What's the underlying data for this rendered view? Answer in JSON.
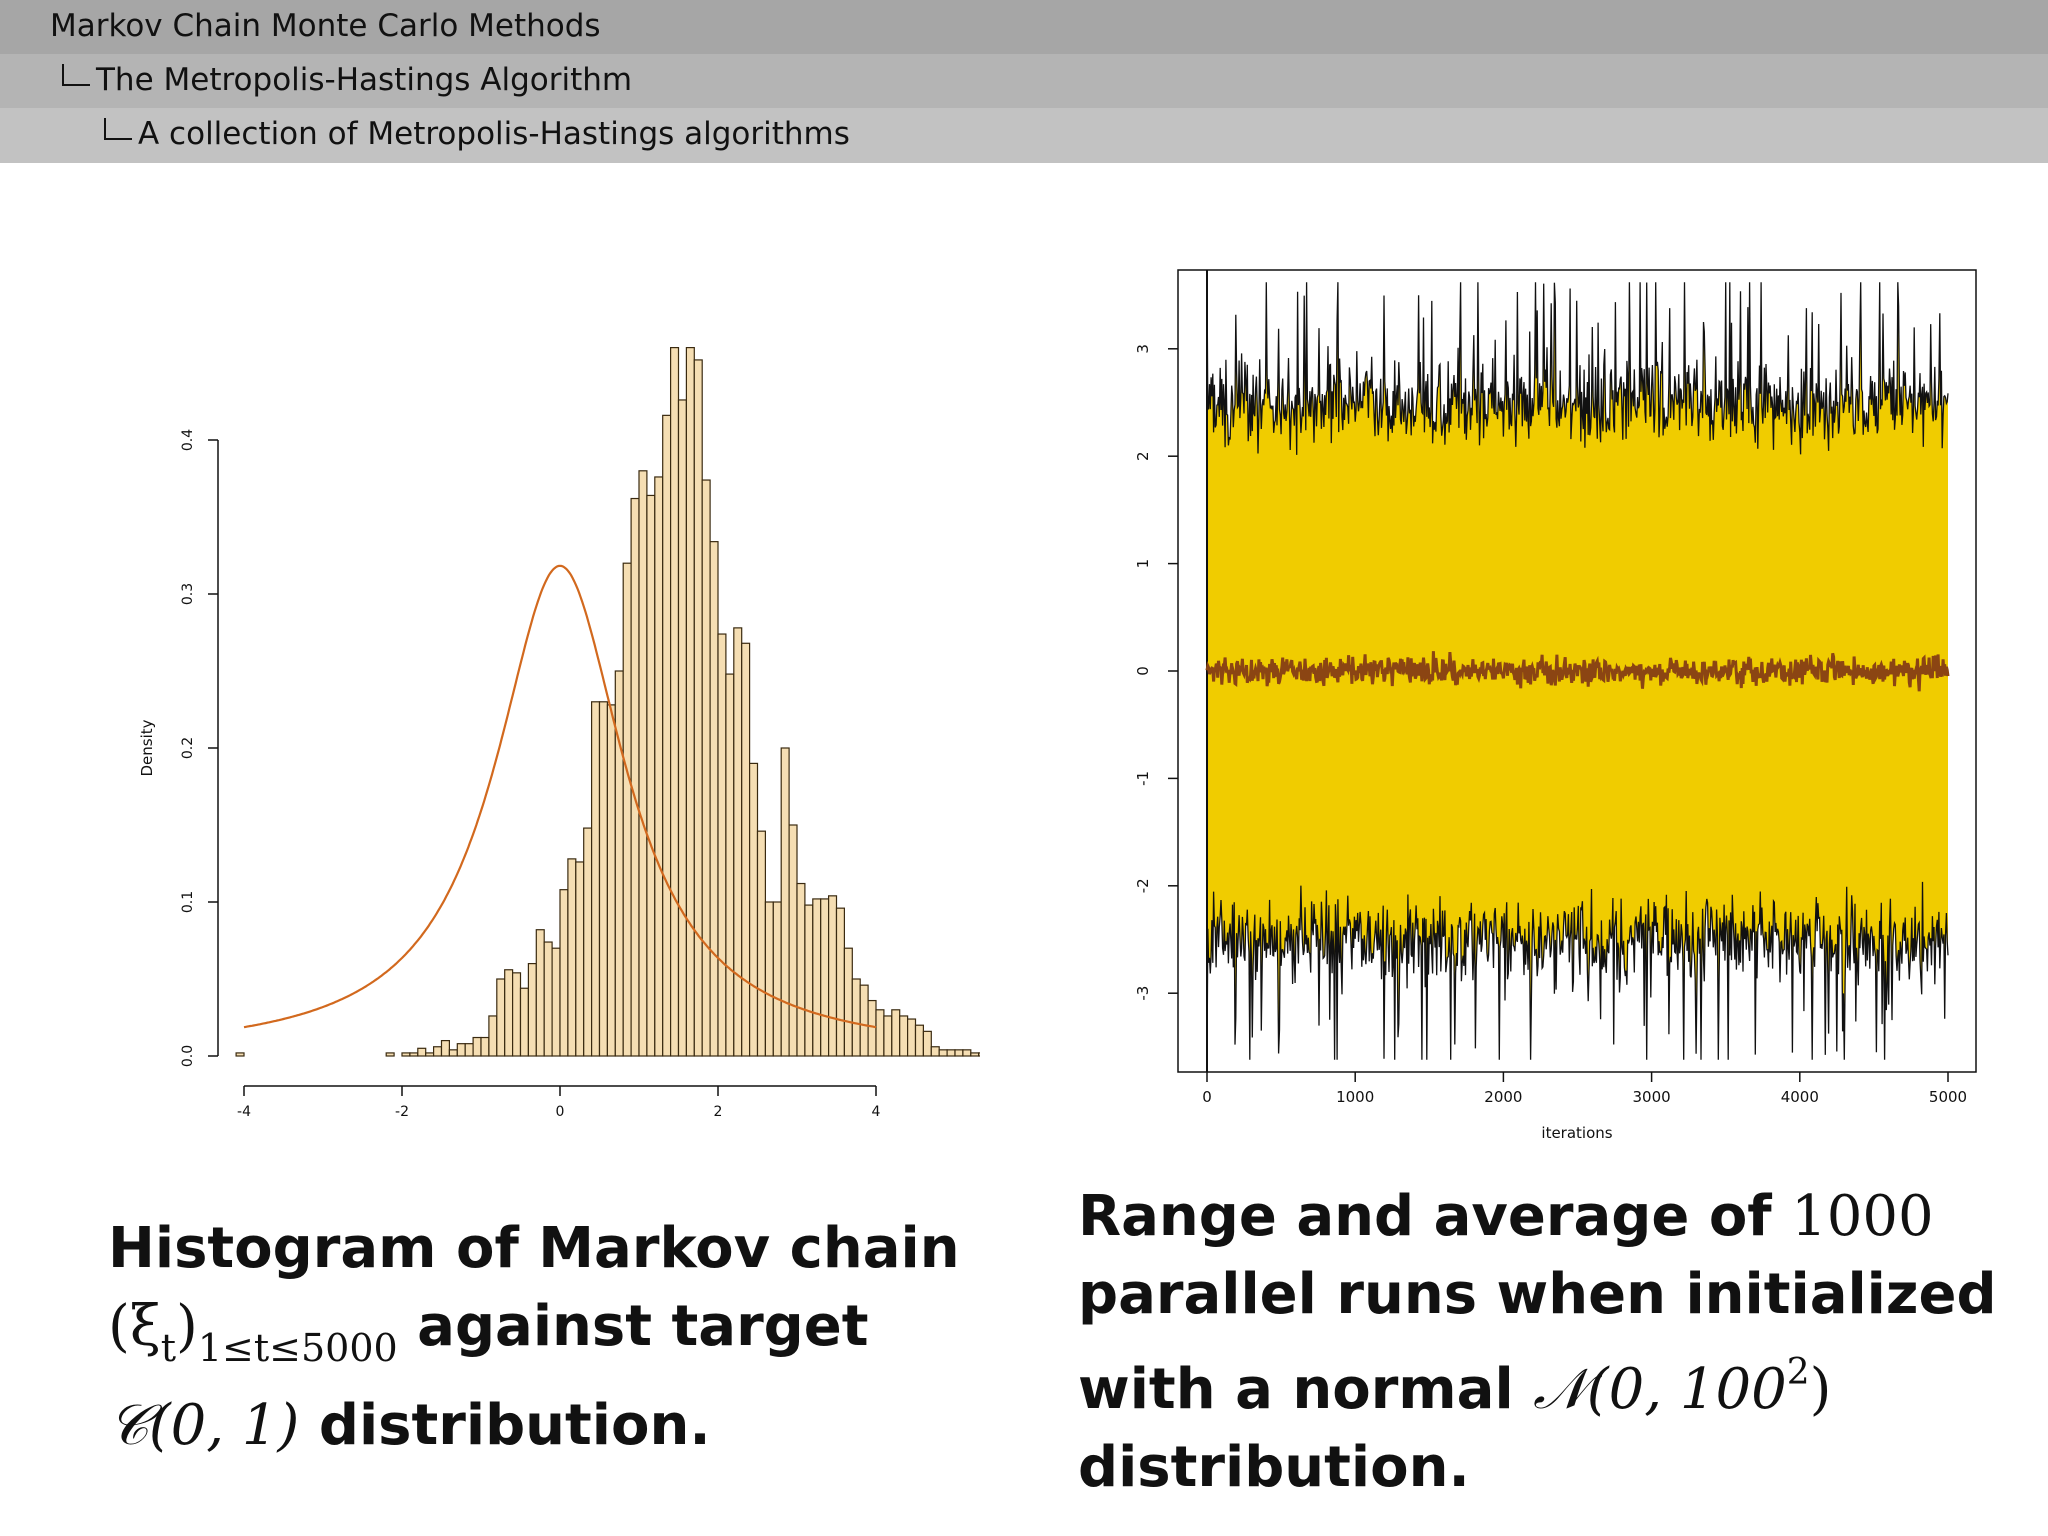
{
  "header": {
    "level1": "Markov Chain Monte Carlo Methods",
    "level2": "The Metropolis-Hastings Algorithm",
    "level3": "A collection of Metropolis-Hastings algorithms"
  },
  "captions": {
    "left": {
      "line1": "Histogram of Markov chain",
      "math_xi": "(ξ",
      "math_t": "t",
      "math_close": ")",
      "math_sub": "1≤t≤5000",
      "line2_text": " against target",
      "math_cauchy": "𝒞(0, 1)",
      "line3_text": " distribution."
    },
    "right": {
      "line1_text": "Range and average of ",
      "line1_math": "1000",
      "line2": "parallel runs when initialized",
      "line3_text": "with a normal ",
      "line3_math": "𝒩(0, 100",
      "line3_sup": "2",
      "line3_close": ")",
      "line4": "distribution."
    }
  },
  "chart_data": [
    {
      "type": "bar",
      "title": "",
      "xlabel": "",
      "ylabel": "Density",
      "xlim": [
        -4,
        4
      ],
      "ylim": [
        0,
        0.4
      ],
      "xticks": [
        "-4",
        "-2",
        "0",
        "2",
        "4"
      ],
      "yticks": [
        "0.0",
        "0.1",
        "0.2",
        "0.3",
        "0.4"
      ],
      "bin_width": 0.1,
      "bin_start": -4.1,
      "density": [
        0.002,
        0,
        0,
        0,
        0,
        0,
        0,
        0,
        0,
        0,
        0,
        0,
        0,
        0,
        0,
        0,
        0,
        0,
        0,
        0.002,
        0,
        0.002,
        0.002,
        0.005,
        0.002,
        0.006,
        0.01,
        0.004,
        0.008,
        0.008,
        0.012,
        0.012,
        0.026,
        0.05,
        0.056,
        0.054,
        0.044,
        0.06,
        0.082,
        0.074,
        0.07,
        0.108,
        0.128,
        0.126,
        0.148,
        0.23,
        0.23,
        0.228,
        0.25,
        0.32,
        0.362,
        0.38,
        0.364,
        0.376,
        0.416,
        0.46,
        0.426,
        0.46,
        0.452,
        0.374,
        0.334,
        0.274,
        0.248,
        0.278,
        0.268,
        0.19,
        0.146,
        0.1,
        0.1,
        0.2,
        0.15,
        0.112,
        0.098,
        0.102,
        0.102,
        0.104,
        0.096,
        0.07,
        0.05,
        0.046,
        0.036,
        0.03,
        0.026,
        0.03,
        0.026,
        0.024,
        0.02,
        0.016,
        0.006,
        0.004,
        0.004,
        0.004,
        0.004,
        0.002,
        0.002,
        0.002,
        0,
        0,
        0,
        0,
        0,
        0,
        0,
        0,
        0,
        0,
        0,
        0,
        0,
        0.002
      ],
      "series": [
        {
          "type": "line",
          "formula": "1/(π(1+x²))",
          "color": "#d2691e"
        }
      ],
      "colors": {
        "bar_fill": "#f5deb3",
        "bar_stroke": "#3a2a10"
      }
    },
    {
      "type": "area",
      "title": "",
      "xlabel": "iterations",
      "ylabel": "",
      "xlim": [
        0,
        5000
      ],
      "ylim": [
        -3.7,
        3.7
      ],
      "xticks": [
        "0",
        "1000",
        "2000",
        "3000",
        "4000",
        "5000"
      ],
      "yticks": [
        "-3",
        "-2",
        "-1",
        "0",
        "1",
        "2",
        "3"
      ],
      "series": [
        {
          "name": "",
          "kind": "range band",
          "approx_upper": 2.5,
          "approx_lower": -2.5,
          "fill": "#f0cc00",
          "stroke": "#111111"
        },
        {
          "name": "",
          "kind": "average",
          "approx_value": 0.0,
          "color": "#8b4513"
        }
      ]
    }
  ]
}
